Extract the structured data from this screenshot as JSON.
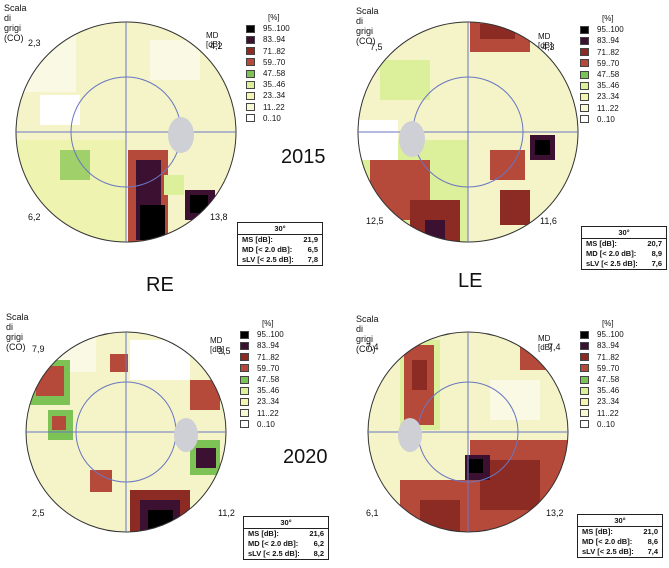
{
  "labels": {
    "year_2015": "2015",
    "year_2020": "2020",
    "right_eye": "RE",
    "left_eye": "LE"
  },
  "legend_colors": [
    "#000000",
    "#3b1030",
    "#8c2b24",
    "#b5493a",
    "#7dc254",
    "#dcef9a",
    "#f3f4b0",
    "#f8f8d4",
    "#ffffff"
  ],
  "panels": [
    {
      "id": "re-2015",
      "title": "Scala di grigi (CO)",
      "md_label": "MD [dB]",
      "quadrants": {
        "tl": "2,3",
        "tr": "4,2",
        "bl": "6,2",
        "br": "13,8"
      },
      "legend": {
        "unit": "[%]",
        "items": [
          "95..100",
          "83..94",
          "71..82",
          "59..70",
          "47..58",
          "35..46",
          "23..34",
          "11..22",
          "0..10"
        ]
      },
      "stats": {
        "header": "30°",
        "rows": [
          {
            "label": "MS [dB]:",
            "value": "21,9"
          },
          {
            "label": "MD [< 2.0 dB]:",
            "value": "6,5"
          },
          {
            "label": "sLV [< 2.5 dB]:",
            "value": "7,8"
          }
        ]
      }
    },
    {
      "id": "le-2015",
      "title": "Scala di grigi (CO)",
      "md_label": "MD [dB]",
      "quadrants": {
        "tl": "7,5",
        "tr": "4,3",
        "bl": "12,5",
        "br": "11,6"
      },
      "legend": {
        "unit": "[%]",
        "items": [
          "95..100",
          "83..94",
          "71..82",
          "59..70",
          "47..58",
          "35..46",
          "23..34",
          "11..22",
          "0..10"
        ]
      },
      "stats": {
        "header": "30°",
        "rows": [
          {
            "label": "MS [dB]:",
            "value": "20,7"
          },
          {
            "label": "MD [< 2.0 dB]:",
            "value": "8,9"
          },
          {
            "label": "sLV [< 2.5 dB]:",
            "value": "7,6"
          }
        ]
      }
    },
    {
      "id": "re-2020",
      "title": "Scala di grigi (CO)",
      "md_label": "MD [dB]",
      "quadrants": {
        "tl": "7,9",
        "tr": "3,5",
        "bl": "2,5",
        "br": "11,2"
      },
      "legend": {
        "unit": "[%]",
        "items": [
          "95..100",
          "83..94",
          "71..82",
          "59..70",
          "47..58",
          "35..46",
          "23..34",
          "11..22",
          "0..10"
        ]
      },
      "stats": {
        "header": "30°",
        "rows": [
          {
            "label": "MS [dB]:",
            "value": "21,6"
          },
          {
            "label": "MD [< 2.0 dB]:",
            "value": "6,2"
          },
          {
            "label": "sLV [< 2.5 dB]:",
            "value": "8,2"
          }
        ]
      }
    },
    {
      "id": "le-2020",
      "title": "Scala di grigi (CO)",
      "md_label": "MD [dB]",
      "quadrants": {
        "tl": "7,4",
        "tr": "7,4",
        "bl": "6,1",
        "br": "13,2"
      },
      "legend": {
        "unit": "[%]",
        "items": [
          "95..100",
          "83..94",
          "71..82",
          "59..70",
          "47..58",
          "35..46",
          "23..34",
          "11..22",
          "0..10"
        ]
      },
      "stats": {
        "header": "30°",
        "rows": [
          {
            "label": "MS [dB]:",
            "value": "21,0"
          },
          {
            "label": "MD [< 2.0 dB]:",
            "value": "8,6"
          },
          {
            "label": "sLV [< 2.5 dB]:",
            "value": "7,4"
          }
        ]
      }
    }
  ]
}
